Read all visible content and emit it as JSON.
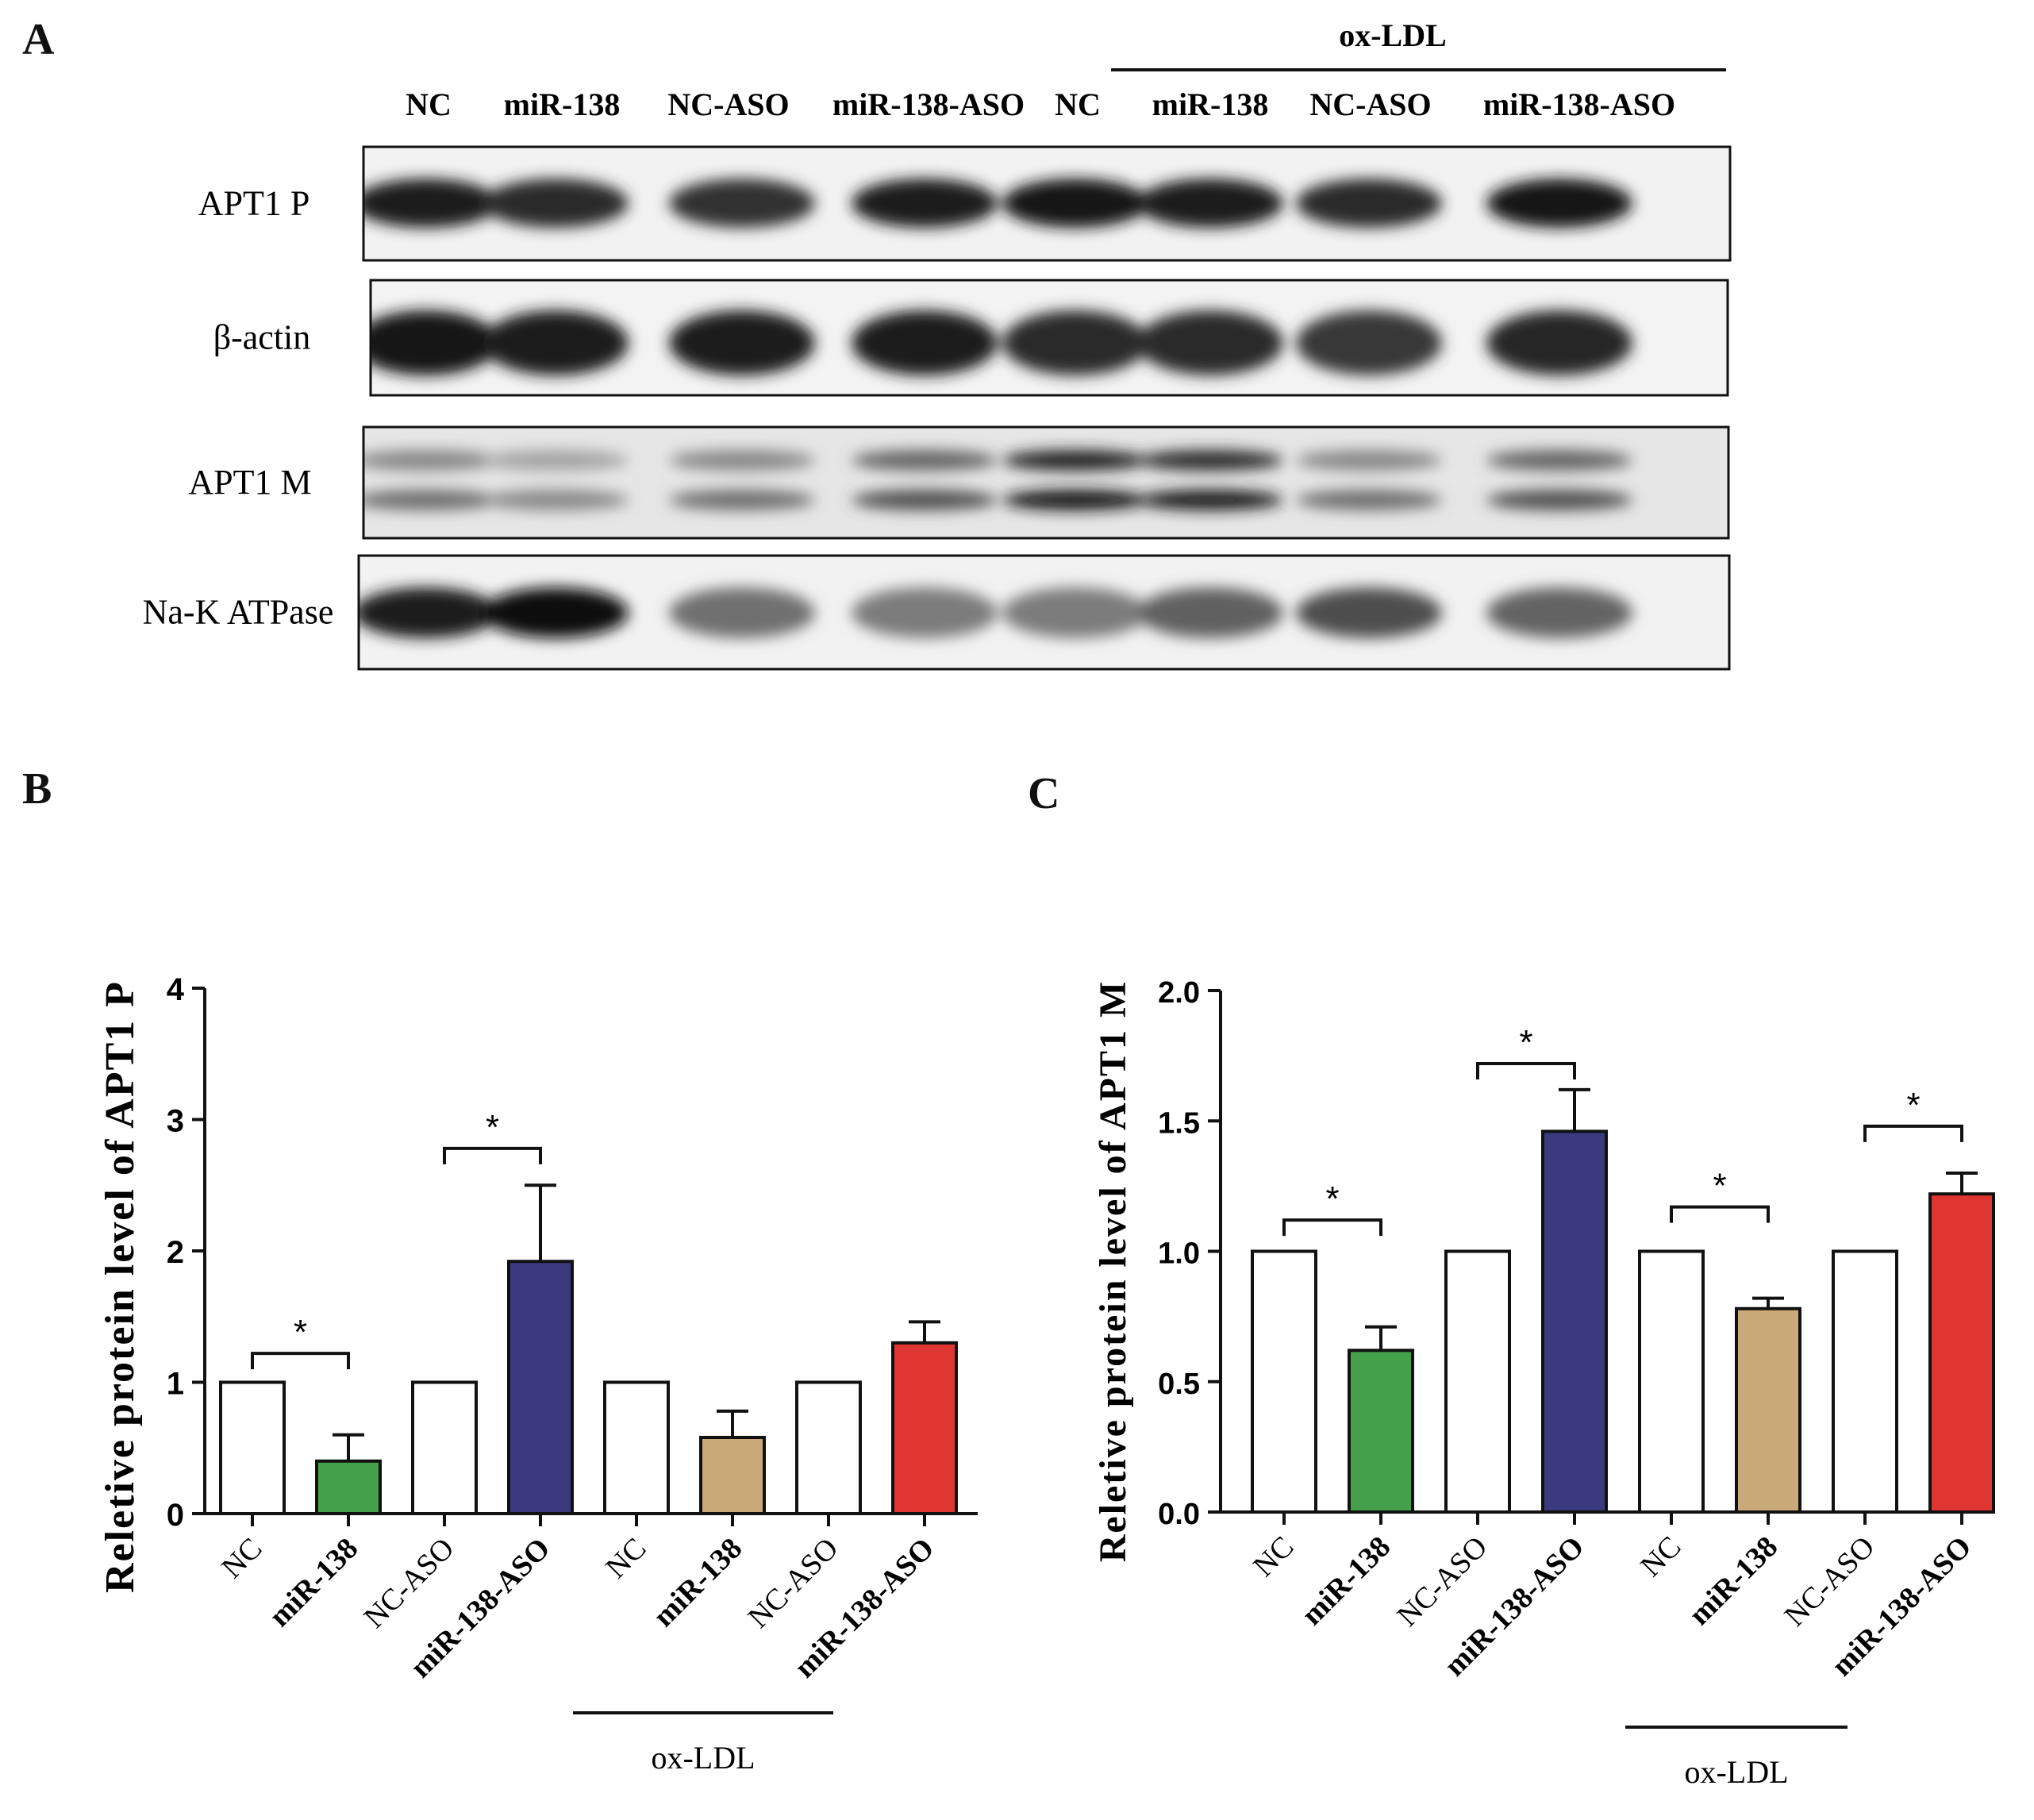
{
  "panels": {
    "a": "A",
    "b": "B",
    "c": "C"
  },
  "blot": {
    "group_label": "ox-LDL",
    "lanes": [
      "NC",
      "miR-138",
      "NC-ASO",
      "miR-138-ASO",
      "NC",
      "miR-138",
      "NC-ASO",
      "miR-138-ASO"
    ],
    "rows": [
      {
        "label": "APT1 P",
        "intensity": [
          0.92,
          0.85,
          0.82,
          0.93,
          0.95,
          0.93,
          0.85,
          0.95
        ]
      },
      {
        "label": "β-actin",
        "intensity": [
          0.95,
          0.93,
          0.93,
          0.92,
          0.85,
          0.85,
          0.8,
          0.88
        ]
      },
      {
        "label": "APT1 M",
        "intensity": [
          0.45,
          0.32,
          0.45,
          0.6,
          0.9,
          0.85,
          0.45,
          0.6
        ]
      },
      {
        "label": "Na-K ATPase",
        "intensity": [
          0.92,
          0.97,
          0.55,
          0.5,
          0.5,
          0.62,
          0.7,
          0.6
        ]
      }
    ]
  },
  "chart_data": [
    {
      "type": "bar",
      "ylabel": "Reletive protein level of APT1 P",
      "ylim": [
        0,
        4
      ],
      "yticks": [
        "0",
        "1",
        "2",
        "3",
        "4"
      ],
      "categories": [
        "NC",
        "miR-138",
        "NC-ASO",
        "miR-138-ASO",
        "NC",
        "miR-138",
        "NC-ASO",
        "miR-138-ASO"
      ],
      "values": [
        1.0,
        0.4,
        1.0,
        1.92,
        1.0,
        0.58,
        1.0,
        1.3
      ],
      "errors": [
        0,
        0.2,
        0,
        0.58,
        0,
        0.2,
        0,
        0.16
      ],
      "colors": [
        "#ffffff",
        "#44a04a",
        "#ffffff",
        "#3c3a7e",
        "#ffffff",
        "#c9aa78",
        "#ffffff",
        "#e03631"
      ],
      "significance": [
        {
          "pair": [
            0,
            1
          ],
          "label": "*",
          "y": 1.22
        },
        {
          "pair": [
            2,
            3
          ],
          "label": "*",
          "y": 2.78
        }
      ],
      "group_label": "ox-LDL"
    },
    {
      "type": "bar",
      "ylabel": "Reletive protein level of APT1 M",
      "ylim": [
        0,
        2.0
      ],
      "yticks": [
        "0.0",
        "0.5",
        "1.0",
        "1.5",
        "2.0"
      ],
      "categories": [
        "NC",
        "miR-138",
        "NC-ASO",
        "miR-138-ASO",
        "NC",
        "miR-138",
        "NC-ASO",
        "miR-138-ASO"
      ],
      "values": [
        1.0,
        0.62,
        1.0,
        1.46,
        1.0,
        0.78,
        1.0,
        1.22
      ],
      "errors": [
        0,
        0.09,
        0,
        0.16,
        0,
        0.04,
        0,
        0.08
      ],
      "colors": [
        "#ffffff",
        "#44a04a",
        "#ffffff",
        "#3c3a7e",
        "#ffffff",
        "#c9aa78",
        "#ffffff",
        "#e03631"
      ],
      "significance": [
        {
          "pair": [
            0,
            1
          ],
          "label": "*",
          "y": 1.12
        },
        {
          "pair": [
            2,
            3
          ],
          "label": "*",
          "y": 1.72
        },
        {
          "pair": [
            4,
            5
          ],
          "label": "*",
          "y": 1.17
        },
        {
          "pair": [
            6,
            7
          ],
          "label": "*",
          "y": 1.48
        }
      ],
      "group_label": "ox-LDL"
    }
  ]
}
